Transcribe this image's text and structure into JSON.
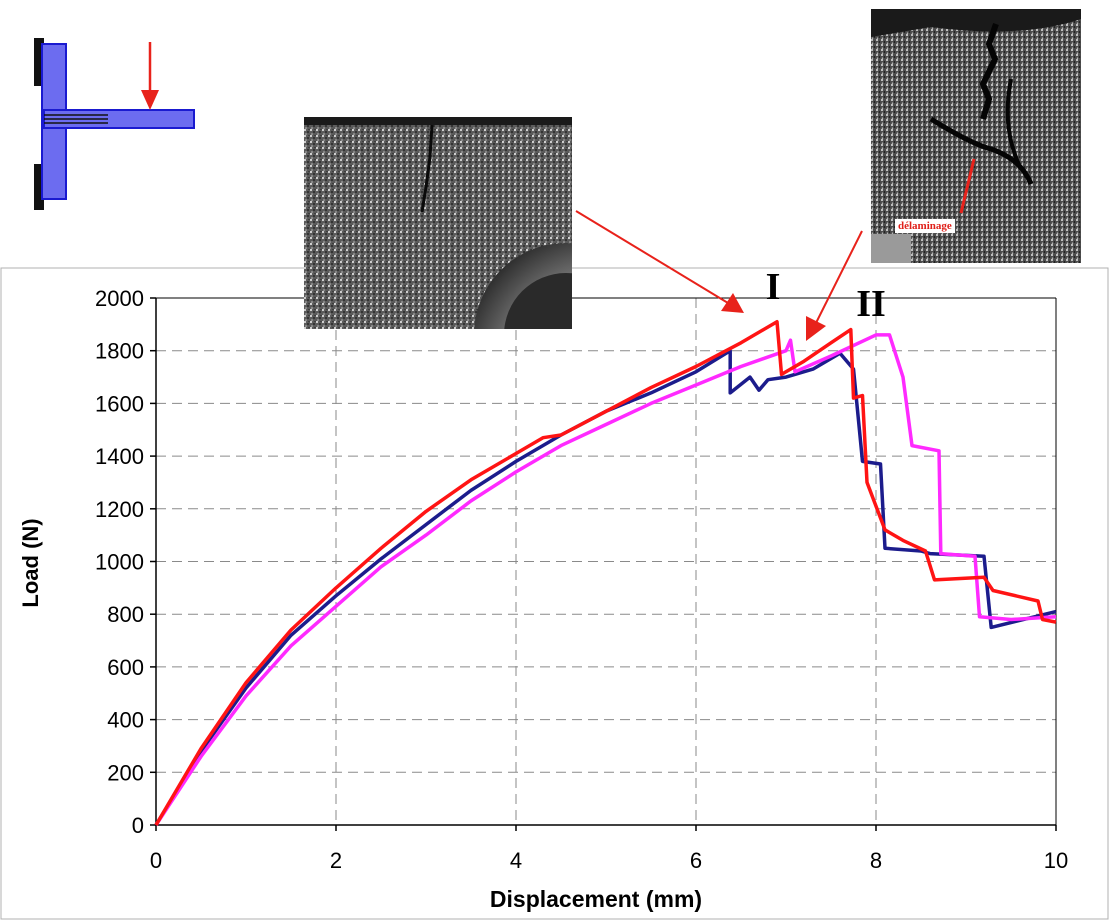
{
  "chart_data": {
    "type": "line",
    "title": "",
    "xlabel": "Displacement (mm)",
    "ylabel": "Load (N)",
    "xlim": [
      0,
      10
    ],
    "ylim": [
      0,
      2000
    ],
    "xticks": [
      "0",
      "2",
      "4",
      "6",
      "8",
      "10"
    ],
    "yticks": [
      "0",
      "200",
      "400",
      "600",
      "800",
      "1000",
      "1200",
      "1400",
      "1600",
      "1800",
      "2000"
    ],
    "grid": true,
    "legend": "none",
    "series": [
      {
        "color": "#1c1c8c",
        "points": [
          [
            0,
            0
          ],
          [
            0.5,
            280
          ],
          [
            1,
            520
          ],
          [
            1.5,
            720
          ],
          [
            2,
            870
          ],
          [
            2.5,
            1010
          ],
          [
            3,
            1140
          ],
          [
            3.5,
            1270
          ],
          [
            4,
            1380
          ],
          [
            4.5,
            1480
          ],
          [
            5,
            1570
          ],
          [
            5.5,
            1640
          ],
          [
            6,
            1720
          ],
          [
            6.38,
            1800
          ],
          [
            6.38,
            1640
          ],
          [
            6.6,
            1700
          ],
          [
            6.7,
            1650
          ],
          [
            6.8,
            1690
          ],
          [
            7,
            1700
          ],
          [
            7.3,
            1730
          ],
          [
            7.6,
            1790
          ],
          [
            7.75,
            1730
          ],
          [
            7.85,
            1380
          ],
          [
            8.05,
            1370
          ],
          [
            8.1,
            1050
          ],
          [
            8.5,
            1040
          ],
          [
            8.6,
            1030
          ],
          [
            9.2,
            1020
          ],
          [
            9.28,
            750
          ],
          [
            10,
            810
          ]
        ]
      },
      {
        "color": "#ff2aff",
        "points": [
          [
            0,
            0
          ],
          [
            0.5,
            260
          ],
          [
            1,
            490
          ],
          [
            1.5,
            680
          ],
          [
            2,
            830
          ],
          [
            2.5,
            980
          ],
          [
            3,
            1100
          ],
          [
            3.5,
            1230
          ],
          [
            4,
            1340
          ],
          [
            4.5,
            1440
          ],
          [
            5,
            1520
          ],
          [
            5.5,
            1600
          ],
          [
            6,
            1670
          ],
          [
            6.5,
            1740
          ],
          [
            7,
            1800
          ],
          [
            7.05,
            1840
          ],
          [
            7.1,
            1720
          ],
          [
            7.5,
            1780
          ],
          [
            8,
            1860
          ],
          [
            8.15,
            1860
          ],
          [
            8.3,
            1700
          ],
          [
            8.4,
            1440
          ],
          [
            8.7,
            1420
          ],
          [
            8.72,
            1030
          ],
          [
            9.1,
            1020
          ],
          [
            9.15,
            790
          ],
          [
            9.5,
            780
          ],
          [
            10,
            790
          ]
        ]
      },
      {
        "color": "#ff1414",
        "points": [
          [
            0,
            0
          ],
          [
            0.5,
            290
          ],
          [
            1,
            540
          ],
          [
            1.5,
            740
          ],
          [
            2,
            900
          ],
          [
            2.5,
            1050
          ],
          [
            3,
            1190
          ],
          [
            3.5,
            1310
          ],
          [
            4,
            1410
          ],
          [
            4.3,
            1470
          ],
          [
            4.5,
            1480
          ],
          [
            5,
            1570
          ],
          [
            5.5,
            1660
          ],
          [
            6,
            1740
          ],
          [
            6.5,
            1830
          ],
          [
            6.9,
            1910
          ],
          [
            6.95,
            1710
          ],
          [
            7.2,
            1760
          ],
          [
            7.5,
            1830
          ],
          [
            7.72,
            1880
          ],
          [
            7.75,
            1620
          ],
          [
            7.85,
            1630
          ],
          [
            7.9,
            1300
          ],
          [
            8.1,
            1120
          ],
          [
            8.3,
            1080
          ],
          [
            8.55,
            1040
          ],
          [
            8.65,
            930
          ],
          [
            9.2,
            940
          ],
          [
            9.3,
            890
          ],
          [
            9.8,
            850
          ],
          [
            9.85,
            780
          ],
          [
            10,
            770
          ]
        ]
      }
    ],
    "annotations": [
      {
        "text": "I"
      },
      {
        "text": "II"
      }
    ]
  },
  "photos": {
    "delamination_label": "délaminage"
  },
  "colors": {
    "arrow": "#e8221b",
    "specimen_fill": "#6c6cf0",
    "specimen_edge": "#1a1ad0",
    "clamp": "#111111"
  }
}
